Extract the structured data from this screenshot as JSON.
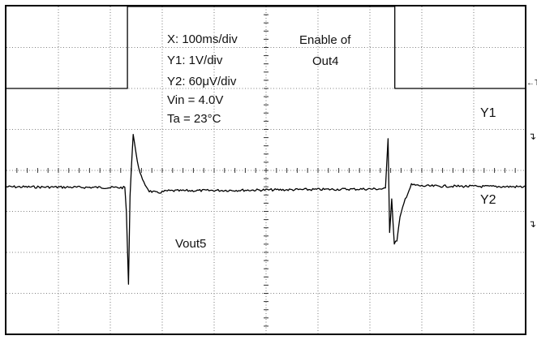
{
  "chart_data": {
    "type": "line",
    "title": "",
    "xlabel": "",
    "ylabel": "",
    "grid": true,
    "grid_divisions": {
      "x": 10,
      "y": 8
    },
    "settings_text": [
      "X: 100ms/div",
      "Y1: 1V/div",
      "Y2: 60μV/div",
      "Vin = 4.0V",
      "Ta = 23°C"
    ],
    "annotations": {
      "enable_label": [
        "Enable of",
        "Out4"
      ],
      "vout_label": "Vout5"
    },
    "edge_markers": {
      "trigger": "←T",
      "y1_ground": "↴",
      "y2_ground": "↴"
    },
    "x_unit": "div",
    "series": [
      {
        "name": "Y1",
        "y_unit": "div",
        "x": [
          0,
          2.33,
          2.33,
          7.48,
          7.48,
          10
        ],
        "y": [
          6.0,
          6.0,
          8.0,
          8.0,
          6.0,
          6.0
        ]
      },
      {
        "name": "Y2",
        "y_unit": "div",
        "x": [
          0,
          2.28,
          2.31,
          2.35,
          2.38,
          2.44,
          2.52,
          2.62,
          2.75,
          2.9,
          3.1,
          7.3,
          7.35,
          7.38,
          7.42,
          7.47,
          7.52,
          7.58,
          7.68,
          7.8,
          8.0,
          10
        ],
        "y": [
          3.6,
          3.58,
          3.0,
          1.2,
          3.4,
          4.9,
          4.2,
          3.75,
          3.5,
          3.45,
          3.5,
          3.55,
          4.8,
          2.5,
          3.3,
          2.2,
          2.3,
          2.85,
          3.3,
          3.65,
          3.62,
          3.6
        ]
      }
    ]
  }
}
